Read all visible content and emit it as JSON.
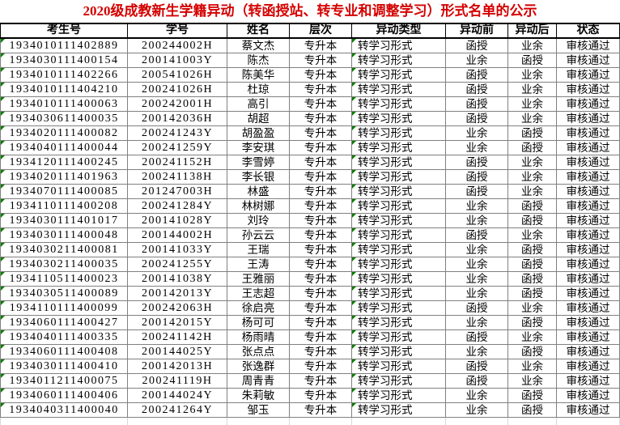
{
  "title": "2020级成教新生学籍异动（转函授站、转专业和调整学习）形式名单的公示",
  "colors": {
    "title_text": "#d40000",
    "header_line": "#000000",
    "grid_line": "#808080",
    "empty_grid_line": "#d8d8d8",
    "flag_green": "#0a7d00",
    "background": "#ffffff",
    "text": "#000000"
  },
  "table": {
    "headers": [
      "考生号",
      "学号",
      "姓名",
      "层次",
      "异动类型",
      "异动前",
      "异动后",
      "状态"
    ],
    "header_names": [
      "candidate-no",
      "student-no",
      "name",
      "level",
      "change-type",
      "before-change",
      "after-change",
      "status"
    ],
    "flagged_columns": [
      0,
      4
    ],
    "rows": [
      [
        "1934010111402889",
        "200244002H",
        "蔡文杰",
        "专升本",
        "转学习形式",
        "函授",
        "业余",
        "审核通过"
      ],
      [
        "1934030111400154",
        "200141003Y",
        "陈杰",
        "专升本",
        "转学习形式",
        "业余",
        "函授",
        "审核通过"
      ],
      [
        "1934010111402266",
        "200541026H",
        "陈美华",
        "专升本",
        "转学习形式",
        "函授",
        "业余",
        "审核通过"
      ],
      [
        "1934010111404210",
        "200241026H",
        "杜琼",
        "专升本",
        "转学习形式",
        "函授",
        "业余",
        "审核通过"
      ],
      [
        "1934010111400063",
        "200242001H",
        "高引",
        "专升本",
        "转学习形式",
        "函授",
        "业余",
        "审核通过"
      ],
      [
        "1934030611400035",
        "200142036H",
        "胡超",
        "专升本",
        "转学习形式",
        "函授",
        "业余",
        "审核通过"
      ],
      [
        "1934020111400082",
        "200241243Y",
        "胡盈盈",
        "专升本",
        "转学习形式",
        "业余",
        "函授",
        "审核通过"
      ],
      [
        "1934040111400044",
        "200241259Y",
        "李安琪",
        "专升本",
        "转学习形式",
        "业余",
        "函授",
        "审核通过"
      ],
      [
        "1934120111400245",
        "200241152H",
        "李雪婷",
        "专升本",
        "转学习形式",
        "函授",
        "业余",
        "审核通过"
      ],
      [
        "1934020111401963",
        "200241138H",
        "李长银",
        "专升本",
        "转学习形式",
        "函授",
        "业余",
        "审核通过"
      ],
      [
        "1934070111400085",
        "201247003H",
        "林盛",
        "专升本",
        "转学习形式",
        "函授",
        "业余",
        "审核通过"
      ],
      [
        "1934110111400208",
        "200241284Y",
        "林树娜",
        "专升本",
        "转学习形式",
        "业余",
        "函授",
        "审核通过"
      ],
      [
        "1934030111401017",
        "200141028Y",
        "刘玲",
        "专升本",
        "转学习形式",
        "业余",
        "函授",
        "审核通过"
      ],
      [
        "1934030111400048",
        "200144002H",
        "孙云云",
        "专升本",
        "转学习形式",
        "函授",
        "业余",
        "审核通过"
      ],
      [
        "1934030211400081",
        "200141033Y",
        "王瑞",
        "专升本",
        "转学习形式",
        "业余",
        "函授",
        "审核通过"
      ],
      [
        "1934030211400035",
        "200241255Y",
        "王涛",
        "专升本",
        "转学习形式",
        "业余",
        "函授",
        "审核通过"
      ],
      [
        "1934110511400023",
        "200141038Y",
        "王雅丽",
        "专升本",
        "转学习形式",
        "业余",
        "函授",
        "审核通过"
      ],
      [
        "1934030511400089",
        "200142013Y",
        "王志超",
        "专升本",
        "转学习形式",
        "业余",
        "函授",
        "审核通过"
      ],
      [
        "1934110111400099",
        "200242063H",
        "徐启亮",
        "专升本",
        "转学习形式",
        "函授",
        "业余",
        "审核通过"
      ],
      [
        "1934060111400427",
        "200142015Y",
        "杨可可",
        "专升本",
        "转学习形式",
        "业余",
        "函授",
        "审核通过"
      ],
      [
        "1934040111400335",
        "200241142H",
        "杨雨晴",
        "专升本",
        "转学习形式",
        "函授",
        "业余",
        "审核通过"
      ],
      [
        "1934060111400408",
        "200144025Y",
        "张点点",
        "专升本",
        "转学习形式",
        "业余",
        "函授",
        "审核通过"
      ],
      [
        "1934030111400410",
        "200142013H",
        "张逸群",
        "专升本",
        "转学习形式",
        "函授",
        "业余",
        "审核通过"
      ],
      [
        "1934011211400075",
        "200241119H",
        "周青青",
        "专升本",
        "转学习形式",
        "函授",
        "业余",
        "审核通过"
      ],
      [
        "1934060111400406",
        "200144024Y",
        "朱莉敏",
        "专升本",
        "转学习形式",
        "业余",
        "函授",
        "审核通过"
      ],
      [
        "1934040311400040",
        "200241264Y",
        "邹玉",
        "专升本",
        "转学习形式",
        "业余",
        "函授",
        "审核通过"
      ]
    ]
  }
}
